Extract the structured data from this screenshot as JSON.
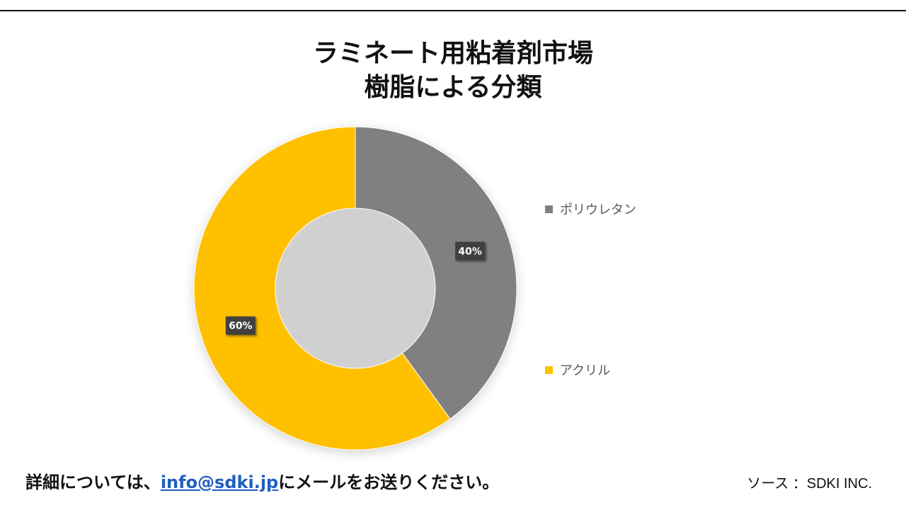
{
  "chart_data": {
    "type": "pie",
    "subtype": "donut",
    "title": [
      "ラミネート用粘着剤市場",
      "樹脂による分類"
    ],
    "categories": [
      "ポリウレタン",
      "アクリル"
    ],
    "values": [
      40,
      60
    ],
    "data_labels": [
      "40%",
      "60%"
    ],
    "colors": [
      "#808080",
      "#FFC000"
    ],
    "legend_position": "right"
  },
  "footer": {
    "prefix": "詳細については、",
    "email": "info@sdki.jp",
    "suffix": "にメールをお送りください。",
    "source": "ソース ：SDKI INC."
  }
}
